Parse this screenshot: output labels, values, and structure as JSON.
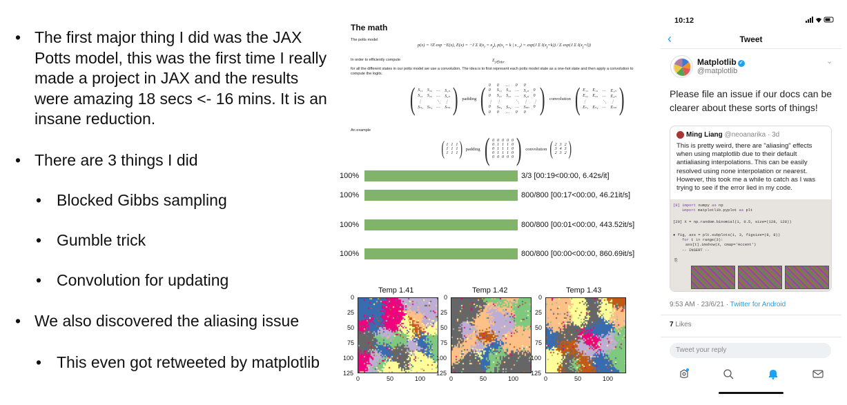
{
  "bullets": {
    "b1": "The first major thing I did was the JAX Potts model, this was the first time I really made a project in JAX and the results were amazing 18 secs <- 16 mins. It is an insane reduction.",
    "b2": "There are 3 things I did",
    "b2_sub": [
      "Blocked Gibbs sampling",
      "Gumble trick",
      "Convolution for updating"
    ],
    "b3": "We also discovered the aliasing issue",
    "b3_sub": "This even got retweeted by matplotlib"
  },
  "math": {
    "title": "The math",
    "potts_label": "The potts model",
    "efficient_label": "In order to efficiently compute",
    "desc": "for all the different states in our potts model we use a convolution. The idea is to first represent each potts model state as a one-hot state and then apply a convolution to compute the logits.",
    "example_label": "An example",
    "padding_label": "padding",
    "convolution_label": "convolution"
  },
  "progress": [
    {
      "pct": "100%",
      "fraction": 1.0,
      "info": "3/3 [00:19<00:00, 6.42s/it]"
    },
    {
      "pct": "100%",
      "fraction": 1.0,
      "info": "800/800 [00:17<00:00, 46.21it/s]"
    },
    {
      "pct": "100%",
      "fraction": 1.0,
      "info": "800/800 [00:01<00:00, 443.52it/s]"
    },
    {
      "pct": "100%",
      "fraction": 1.0,
      "info": "800/800 [00:00<00:00, 860.69it/s]"
    }
  ],
  "chart_data": [
    {
      "type": "heatmap",
      "title": "Temp 1.41",
      "xticks": [
        "0",
        "50",
        "100"
      ],
      "yticks": [
        "0",
        "25",
        "50",
        "75",
        "100",
        "125"
      ]
    },
    {
      "type": "heatmap",
      "title": "Temp 1.42",
      "xticks": [
        "0",
        "50",
        "100"
      ],
      "yticks": [
        "0",
        "25",
        "50",
        "75",
        "100",
        "125"
      ]
    },
    {
      "type": "heatmap",
      "title": "Temp 1.43",
      "xticks": [
        "0",
        "50",
        "100"
      ],
      "yticks": [
        "0",
        "25",
        "50",
        "75",
        "100",
        "125"
      ]
    }
  ],
  "phone": {
    "time": "10:12",
    "nav_title": "Tweet",
    "user_name": "Matplotlib",
    "user_handle": "@matplotlib",
    "tweet_text": "Please file an issue if our docs can be clearer about these sorts of things!",
    "quote": {
      "name": "Ming Liang",
      "handle": "@neoanarika · 3d",
      "text": "This is pretty weird, there are \"aliasing\" effects when using matplotlib due to their default antialiasing interpolations. This can be easily resolved using none interpolation or nearest. However, this took me a while to catch as I was trying to see if the error lied in my code."
    },
    "timestamp": "9:53 AM · 23/6/21 · ",
    "client": "Twitter for Android",
    "likes_count": "7",
    "likes_label": " Likes",
    "reply_placeholder": "Tweet your reply"
  },
  "colors": {
    "progress_fill": "#80b46a",
    "twitter_blue": "#1da1f2"
  },
  "icons": [
    "back-arrow-icon",
    "verified-icon",
    "chevron-down-icon",
    "spaces-icon",
    "search-icon",
    "notifications-icon",
    "messages-icon"
  ]
}
